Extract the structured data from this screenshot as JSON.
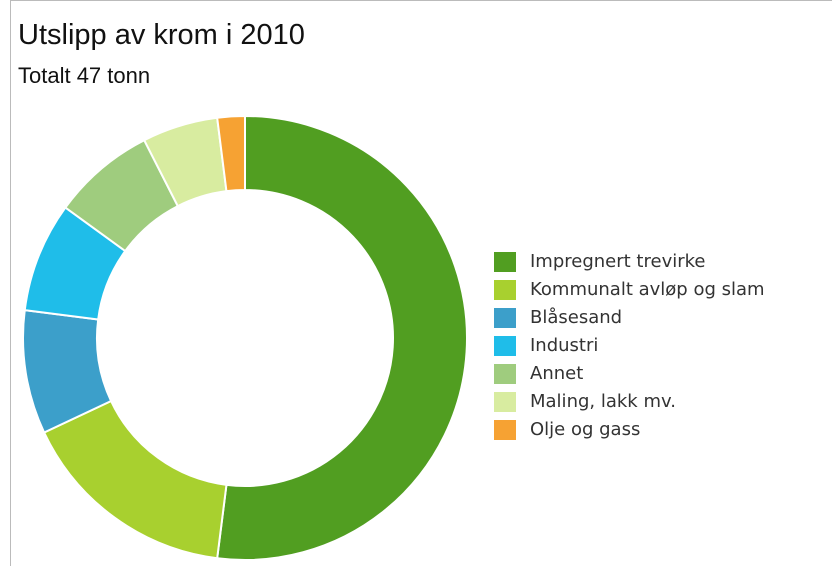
{
  "chart_data": {
    "type": "donut",
    "title": "Utslipp av krom i 2010",
    "subtitle": "Totalt 47 tonn",
    "categories": [
      "Impregnert trevirke",
      "Kommunalt avløp og slam",
      "Blåsesand",
      "Industri",
      "Annet",
      "Maling, lakk mv.",
      "Olje og gass"
    ],
    "values": [
      52,
      16,
      9,
      8,
      7.5,
      5.5,
      2
    ],
    "colors": [
      "#519e21",
      "#a8d02f",
      "#3c9fca",
      "#1fbde9",
      "#9fcc7e",
      "#d8eca0",
      "#f6a233"
    ]
  }
}
